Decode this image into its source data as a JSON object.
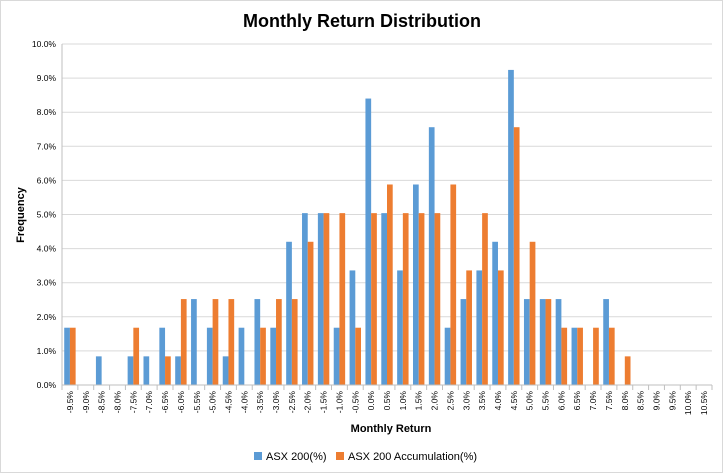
{
  "chart_data": {
    "type": "bar",
    "title": "Monthly Return Distribution",
    "xlabel": "Monthly Return",
    "ylabel": "Frequency",
    "ylim": [
      0,
      10
    ],
    "y_ticks": [
      "0.0%",
      "1.0%",
      "2.0%",
      "3.0%",
      "4.0%",
      "5.0%",
      "6.0%",
      "7.0%",
      "8.0%",
      "9.0%",
      "10.0%"
    ],
    "categories": [
      "-9.5%",
      "-9.0%",
      "-8.5%",
      "-8.0%",
      "-7.5%",
      "-7.0%",
      "-6.5%",
      "-6.0%",
      "-5.5%",
      "-5.0%",
      "-4.5%",
      "-4.0%",
      "-3.5%",
      "-3.0%",
      "-2.5%",
      "-2.0%",
      "-1.5%",
      "-1.0%",
      "-0.5%",
      "0.0%",
      "0.5%",
      "1.0%",
      "1.5%",
      "2.0%",
      "2.5%",
      "3.0%",
      "3.5%",
      "4.0%",
      "4.5%",
      "5.0%",
      "5.5%",
      "6.0%",
      "6.5%",
      "7.0%",
      "7.5%",
      "8.0%",
      "8.5%",
      "9.0%",
      "9.5%",
      "10.0%",
      "10.5%"
    ],
    "series": [
      {
        "name": "ASX 200(%)",
        "color": "#5b9bd5",
        "values": [
          1.68,
          0,
          0.84,
          0,
          0.84,
          0.84,
          1.68,
          0.84,
          2.52,
          1.68,
          0.84,
          1.68,
          2.52,
          1.68,
          4.2,
          5.04,
          5.04,
          1.68,
          3.36,
          8.4,
          5.04,
          3.36,
          5.88,
          7.56,
          1.68,
          2.52,
          3.36,
          4.2,
          9.24,
          2.52,
          2.52,
          2.52,
          1.68,
          0,
          2.52,
          0,
          0,
          0,
          0,
          0,
          0
        ]
      },
      {
        "name": "ASX 200 Accumulation(%)",
        "color": "#ed7d31",
        "values": [
          1.68,
          0,
          0,
          0,
          1.68,
          0,
          0.84,
          2.52,
          0,
          2.52,
          2.52,
          0,
          1.68,
          2.52,
          2.52,
          4.2,
          5.04,
          5.04,
          1.68,
          5.04,
          5.88,
          5.04,
          5.04,
          5.04,
          5.88,
          3.36,
          5.04,
          3.36,
          7.56,
          4.2,
          2.52,
          1.68,
          1.68,
          1.68,
          1.68,
          0.84,
          0,
          0,
          0,
          0,
          0
        ]
      }
    ],
    "gridlines": true,
    "legend_position": "bottom"
  }
}
